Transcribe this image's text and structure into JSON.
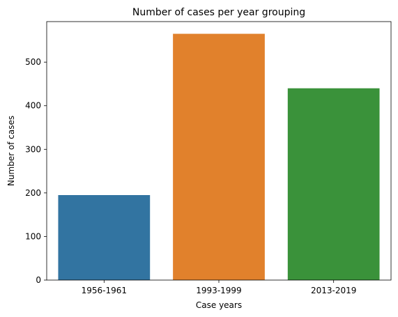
{
  "chart_data": {
    "type": "bar",
    "title": "Number of cases per year grouping",
    "xlabel": "Case years",
    "ylabel": "Number of cases",
    "categories": [
      "1956-1961",
      "1993-1999",
      "2013-2019"
    ],
    "values": [
      195,
      565,
      440
    ],
    "colors": [
      "#3274a1",
      "#e1812c",
      "#3a923a"
    ],
    "ylim": [
      0,
      593
    ],
    "yticks": [
      0,
      100,
      200,
      300,
      400,
      500
    ],
    "grid": false,
    "legend": "none"
  }
}
